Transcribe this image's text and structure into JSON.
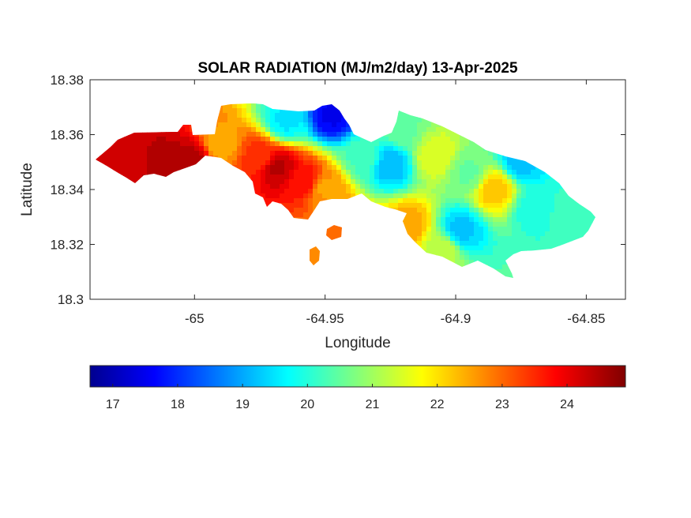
{
  "chart_data": {
    "type": "heatmap",
    "title": "SOLAR RADIATION (MJ/m2/day) 13-Apr-2025",
    "xlabel": "Longitude",
    "ylabel": "Latitude",
    "xlim": [
      -65.04,
      -64.835
    ],
    "ylim": [
      18.3,
      18.38
    ],
    "xticks": [
      -65,
      -64.95,
      -64.9,
      -64.85
    ],
    "xtick_labels": [
      "-65",
      "-64.95",
      "-64.9",
      "-64.85"
    ],
    "yticks": [
      18.3,
      18.32,
      18.34,
      18.36,
      18.38
    ],
    "ytick_labels": [
      "18.3",
      "18.32",
      "18.34",
      "18.36",
      "18.38"
    ],
    "grid": false,
    "colormap": "jet",
    "colorbar": {
      "location": "bottom",
      "range": [
        16.65,
        24.9
      ],
      "ticks": [
        17,
        18,
        19,
        20,
        21,
        22,
        23,
        24
      ],
      "tick_labels": [
        "17",
        "18",
        "19",
        "20",
        "21",
        "22",
        "23",
        "24"
      ]
    },
    "field_samples": [
      {
        "lon": -65.025,
        "lat": 18.35,
        "value": 24.3
      },
      {
        "lon": -65.01,
        "lat": 18.347,
        "value": 24.6
      },
      {
        "lon": -65.0,
        "lat": 18.35,
        "value": 24.5
      },
      {
        "lon": -64.99,
        "lat": 18.356,
        "value": 22.5
      },
      {
        "lon": -64.975,
        "lat": 18.352,
        "value": 23.5
      },
      {
        "lon": -64.968,
        "lat": 18.348,
        "value": 24.4
      },
      {
        "lon": -64.958,
        "lat": 18.343,
        "value": 23.8
      },
      {
        "lon": -64.95,
        "lat": 18.34,
        "value": 22.6
      },
      {
        "lon": -64.947,
        "lat": 18.367,
        "value": 17.6
      },
      {
        "lon": -64.965,
        "lat": 18.365,
        "value": 19.6
      },
      {
        "lon": -64.935,
        "lat": 18.352,
        "value": 20.3
      },
      {
        "lon": -64.925,
        "lat": 18.349,
        "value": 19.2
      },
      {
        "lon": -64.908,
        "lat": 18.352,
        "value": 21.6
      },
      {
        "lon": -64.895,
        "lat": 18.346,
        "value": 20.6
      },
      {
        "lon": -64.885,
        "lat": 18.34,
        "value": 22.3
      },
      {
        "lon": -64.875,
        "lat": 18.35,
        "value": 19.3
      },
      {
        "lon": -64.87,
        "lat": 18.333,
        "value": 20.0
      },
      {
        "lon": -64.898,
        "lat": 18.325,
        "value": 19.3
      },
      {
        "lon": -64.918,
        "lat": 18.327,
        "value": 22.5
      },
      {
        "lon": -64.905,
        "lat": 18.318,
        "value": 21.3
      },
      {
        "lon": -64.94,
        "lat": 18.323,
        "value": 23.0
      },
      {
        "lon": -64.955,
        "lat": 18.315,
        "value": 22.8
      },
      {
        "lon": -64.857,
        "lat": 18.331,
        "value": 20.2
      },
      {
        "lon": -64.92,
        "lat": 18.362,
        "value": 20.6
      }
    ]
  }
}
